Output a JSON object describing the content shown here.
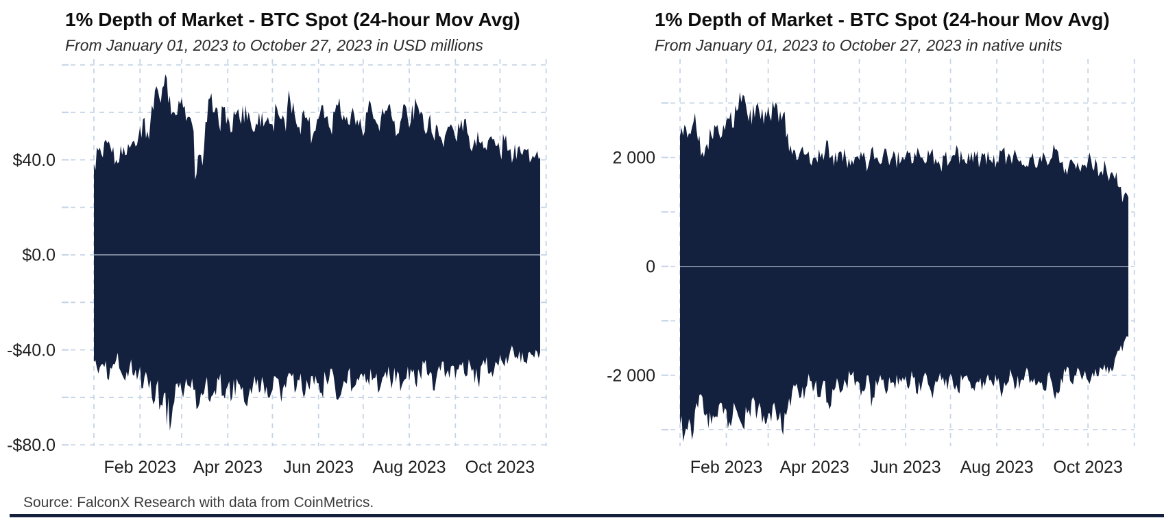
{
  "page": {
    "background": "#ffffff",
    "source_note": "Source: FalconX Research with data from CoinMetrics."
  },
  "colors": {
    "area_fill": "#13203e",
    "gridline": "#c6d4e6",
    "zero_line": "#b9c3d3",
    "tick_label": "#1f1f1f",
    "title": "#0d0d0d",
    "subtitle": "#2b2b2b",
    "source_text": "#3c3c3c",
    "footer_bar": "#15213c"
  },
  "chart_data": [
    {
      "type": "area",
      "title": "1% Depth of Market - BTC Spot (24-hour Mov Avg)",
      "subtitle": "From January 01, 2023 to October 27, 2023 in USD millions",
      "unit": "USD millions",
      "date_range": [
        "January 01, 2023",
        "October 27, 2023"
      ],
      "grid": true,
      "legend_position": "none",
      "ylim": [
        -80.5,
        82.5
      ],
      "y_grid_step": 20,
      "y_ticks": [
        {
          "value": 40,
          "label": "$40.0"
        },
        {
          "value": 0,
          "label": "$0.0"
        },
        {
          "value": -40,
          "label": "-$40.0"
        },
        {
          "value": -80,
          "label": "-$80.0"
        }
      ],
      "x_tick_labels": [
        "Feb 2023",
        "Apr 2023",
        "Jun 2023",
        "Aug 2023",
        "Oct 2023"
      ],
      "x_tick_days": [
        31,
        90,
        151,
        212,
        273
      ],
      "month_grid_days": [
        0,
        31,
        59,
        90,
        120,
        151,
        181,
        212,
        243,
        273,
        304
      ],
      "x_days": [
        0,
        3,
        6,
        9,
        12,
        15,
        18,
        21,
        24,
        27,
        30,
        33,
        36,
        39,
        42,
        45,
        48,
        51,
        54,
        57,
        60,
        63,
        66,
        69,
        72,
        75,
        78,
        81,
        84,
        87,
        90,
        93,
        96,
        99,
        102,
        105,
        108,
        111,
        114,
        117,
        120,
        123,
        126,
        129,
        132,
        135,
        138,
        141,
        144,
        147,
        150,
        153,
        156,
        159,
        162,
        165,
        168,
        171,
        174,
        177,
        180,
        183,
        186,
        189,
        192,
        195,
        198,
        201,
        204,
        207,
        210,
        213,
        216,
        219,
        222,
        225,
        228,
        231,
        234,
        237,
        240,
        243,
        246,
        249,
        252,
        255,
        258,
        261,
        264,
        267,
        270,
        273,
        276,
        279,
        282,
        285,
        288,
        291,
        294,
        297,
        300
      ],
      "series": [
        {
          "name": "bid_depth_upper_envelope",
          "values": [
            38,
            44,
            41,
            47,
            43,
            40,
            46,
            42,
            45,
            48,
            50,
            57,
            52,
            63,
            71,
            64,
            76,
            67,
            60,
            65,
            62,
            58,
            55,
            34,
            42,
            56,
            66,
            60,
            55,
            62,
            58,
            52,
            60,
            55,
            63,
            57,
            52,
            60,
            54,
            58,
            55,
            62,
            57,
            52,
            65,
            59,
            54,
            61,
            56,
            50,
            57,
            63,
            58,
            53,
            60,
            66,
            59,
            55,
            62,
            57,
            53,
            60,
            64,
            57,
            52,
            59,
            63,
            56,
            51,
            58,
            62,
            56,
            66,
            59,
            53,
            57,
            50,
            54,
            48,
            52,
            55,
            49,
            53,
            57,
            50,
            46,
            52,
            48,
            44,
            50,
            46,
            43,
            48,
            44,
            41,
            45,
            42,
            44,
            40,
            42,
            41
          ]
        },
        {
          "name": "ask_depth_lower_envelope",
          "values": [
            -45,
            -50,
            -46,
            -52,
            -48,
            -44,
            -49,
            -53,
            -47,
            -51,
            -50,
            -56,
            -52,
            -60,
            -55,
            -63,
            -58,
            -74,
            -62,
            -56,
            -60,
            -55,
            -52,
            -65,
            -58,
            -54,
            -62,
            -57,
            -53,
            -59,
            -55,
            -60,
            -52,
            -57,
            -63,
            -56,
            -51,
            -58,
            -54,
            -60,
            -57,
            -52,
            -62,
            -56,
            -50,
            -58,
            -53,
            -60,
            -55,
            -51,
            -54,
            -58,
            -52,
            -48,
            -55,
            -60,
            -53,
            -49,
            -56,
            -52,
            -50,
            -54,
            -48,
            -52,
            -57,
            -51,
            -47,
            -53,
            -49,
            -55,
            -52,
            -48,
            -54,
            -50,
            -46,
            -51,
            -57,
            -49,
            -45,
            -50,
            -47,
            -52,
            -46,
            -50,
            -44,
            -48,
            -53,
            -46,
            -43,
            -49,
            -45,
            -42,
            -47,
            -43,
            -40,
            -44,
            -41,
            -46,
            -42,
            -40,
            -41
          ]
        }
      ]
    },
    {
      "type": "area",
      "title": "1% Depth of Market - BTC Spot (24-hour Mov Avg)",
      "subtitle": "From January 01, 2023 to October 27, 2023 in native units",
      "unit": "native units (BTC)",
      "date_range": [
        "January 01, 2023",
        "October 27, 2023"
      ],
      "grid": true,
      "legend_position": "none",
      "ylim": [
        -3300,
        3810
      ],
      "y_grid_step": 1000,
      "y_ticks": [
        {
          "value": 2000,
          "label": "2 000"
        },
        {
          "value": 0,
          "label": "0"
        },
        {
          "value": -2000,
          "label": "-2 000"
        }
      ],
      "x_tick_labels": [
        "Feb 2023",
        "Apr 2023",
        "Jun 2023",
        "Aug 2023",
        "Oct 2023"
      ],
      "x_tick_days": [
        31,
        90,
        151,
        212,
        273
      ],
      "month_grid_days": [
        0,
        31,
        59,
        90,
        120,
        151,
        181,
        212,
        243,
        273,
        304
      ],
      "x_days": [
        0,
        3,
        6,
        9,
        12,
        15,
        18,
        21,
        24,
        27,
        30,
        33,
        36,
        39,
        42,
        45,
        48,
        51,
        54,
        57,
        60,
        63,
        66,
        69,
        72,
        75,
        78,
        81,
        84,
        87,
        90,
        93,
        96,
        99,
        102,
        105,
        108,
        111,
        114,
        117,
        120,
        123,
        126,
        129,
        132,
        135,
        138,
        141,
        144,
        147,
        150,
        153,
        156,
        159,
        162,
        165,
        168,
        171,
        174,
        177,
        180,
        183,
        186,
        189,
        192,
        195,
        198,
        201,
        204,
        207,
        210,
        213,
        216,
        219,
        222,
        225,
        228,
        231,
        234,
        237,
        240,
        243,
        246,
        249,
        252,
        255,
        258,
        261,
        264,
        267,
        270,
        273,
        276,
        279,
        282,
        285,
        288,
        291,
        294,
        297,
        300
      ],
      "series": [
        {
          "name": "bid_depth_upper_envelope",
          "values": [
            2400,
            2600,
            2450,
            2650,
            2300,
            2100,
            2250,
            2400,
            2550,
            2350,
            2500,
            2700,
            2550,
            2900,
            3150,
            2800,
            2600,
            2950,
            2700,
            2850,
            2750,
            2900,
            2650,
            2800,
            2450,
            2050,
            1950,
            2150,
            2050,
            1900,
            2000,
            2150,
            1950,
            2300,
            2050,
            1900,
            2100,
            1980,
            1850,
            2000,
            1950,
            2100,
            1850,
            2200,
            2000,
            1900,
            2150,
            1950,
            2050,
            1880,
            1950,
            2080,
            1900,
            2180,
            2000,
            1920,
            2100,
            1980,
            1850,
            2020,
            1900,
            2050,
            2150,
            1950,
            1880,
            2100,
            2000,
            1920,
            2080,
            1960,
            2050,
            1900,
            2150,
            2000,
            1880,
            2050,
            1950,
            1820,
            2000,
            1900,
            1950,
            2100,
            1850,
            2000,
            2150,
            1900,
            1800,
            1950,
            1880,
            1800,
            1850,
            1950,
            1800,
            1880,
            1750,
            1820,
            1700,
            1600,
            1450,
            1300,
            1270
          ]
        },
        {
          "name": "ask_depth_lower_envelope",
          "values": [
            -2900,
            -3100,
            -2800,
            -3050,
            -2600,
            -2400,
            -2700,
            -2900,
            -2750,
            -2500,
            -2600,
            -2850,
            -2500,
            -2750,
            -2950,
            -2700,
            -2450,
            -2800,
            -2600,
            -2900,
            -2700,
            -2500,
            -2800,
            -3100,
            -2600,
            -2300,
            -2150,
            -2400,
            -2250,
            -2100,
            -2200,
            -2400,
            -2100,
            -2500,
            -2250,
            -2050,
            -2300,
            -2150,
            -2000,
            -2200,
            -2150,
            -2300,
            -2000,
            -2400,
            -2200,
            -2100,
            -2350,
            -2150,
            -2250,
            -2050,
            -2100,
            -2250,
            -2050,
            -2350,
            -2150,
            -2000,
            -2300,
            -2100,
            -1950,
            -2200,
            -2050,
            -2200,
            -2300,
            -2100,
            -2000,
            -2250,
            -2150,
            -2050,
            -2200,
            -2100,
            -2200,
            -2050,
            -2300,
            -2150,
            -2000,
            -2200,
            -2100,
            -1950,
            -2150,
            -2050,
            -2100,
            -2250,
            -2000,
            -2150,
            -2300,
            -2050,
            -1950,
            -2100,
            -2000,
            -1900,
            -2000,
            -2100,
            -1950,
            -2020,
            -1880,
            -1950,
            -1850,
            -1700,
            -1550,
            -1400,
            -1300
          ]
        }
      ]
    }
  ]
}
